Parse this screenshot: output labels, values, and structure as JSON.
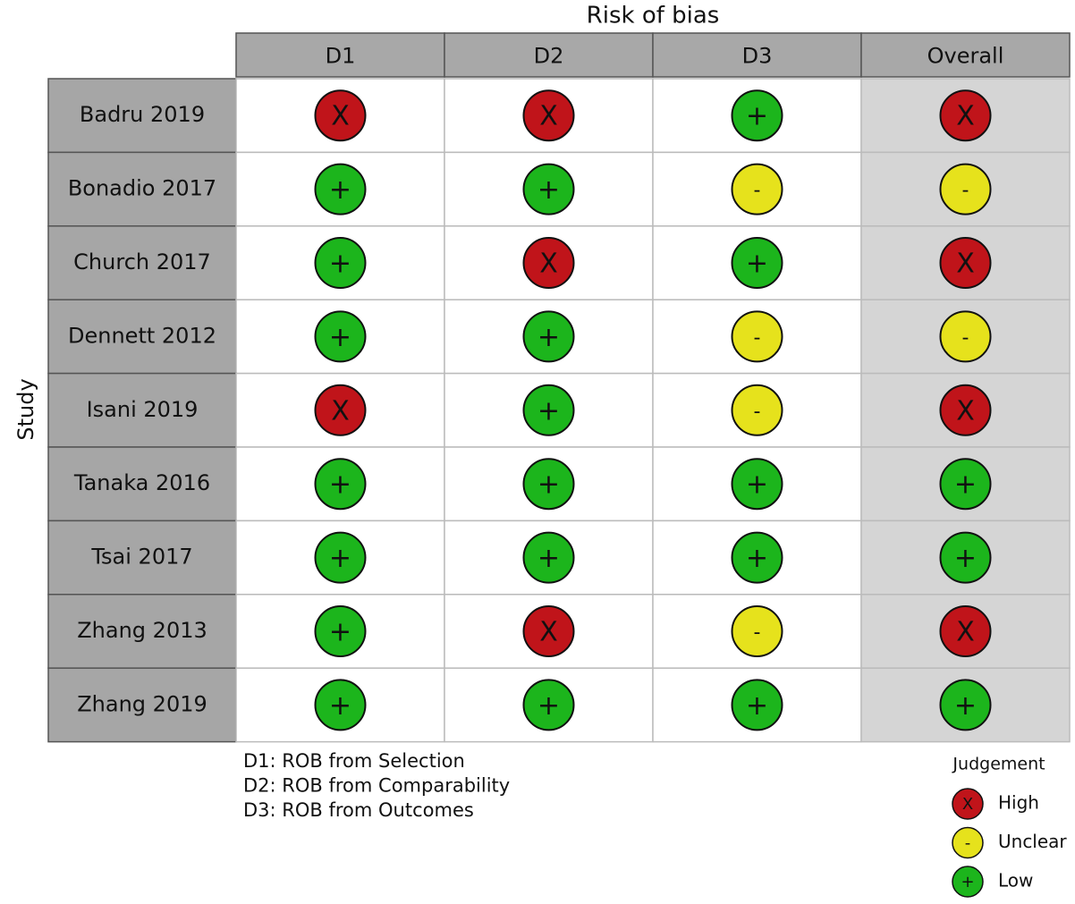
{
  "title": "Risk of bias",
  "y_label": "Study",
  "columns": [
    "D1",
    "D2",
    "D3",
    "Overall"
  ],
  "rows": [
    {
      "study": "Badru 2019",
      "judgements": [
        "X",
        "X",
        "+",
        "X"
      ]
    },
    {
      "study": "Bonadio 2017",
      "judgements": [
        "+",
        "+",
        "-",
        "-"
      ]
    },
    {
      "study": "Church 2017",
      "judgements": [
        "+",
        "X",
        "+",
        "X"
      ]
    },
    {
      "study": "Dennett 2012",
      "judgements": [
        "+",
        "+",
        "-",
        "-"
      ]
    },
    {
      "study": "Isani 2019",
      "judgements": [
        "X",
        "+",
        "-",
        "X"
      ]
    },
    {
      "study": "Tanaka 2016",
      "judgements": [
        "+",
        "+",
        "+",
        "+"
      ]
    },
    {
      "study": "Tsai 2017",
      "judgements": [
        "+",
        "+",
        "+",
        "+"
      ]
    },
    {
      "study": "Zhang 2013",
      "judgements": [
        "+",
        "X",
        "-",
        "X"
      ]
    },
    {
      "study": "Zhang 2019",
      "judgements": [
        "+",
        "+",
        "+",
        "+"
      ]
    }
  ],
  "notes": [
    "D1: ROB from Selection",
    "D2: ROB from Comparability",
    "D3: ROB from Outcomes"
  ],
  "legend": {
    "title": "Judgement",
    "items": [
      {
        "symbol": "X",
        "label": "High",
        "color": "#c0141a"
      },
      {
        "symbol": "-",
        "label": "Unclear",
        "color": "#e6e21c"
      },
      {
        "symbol": "+",
        "label": "Low",
        "color": "#1cb51c"
      }
    ]
  }
}
